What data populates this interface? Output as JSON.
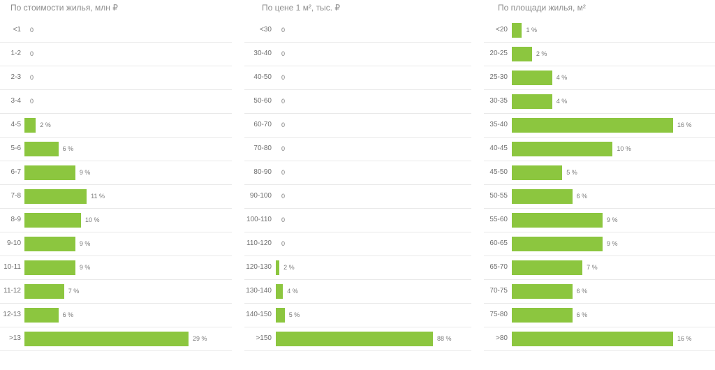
{
  "accent_color": "#8cc63f",
  "chart_data": [
    {
      "type": "bar",
      "orientation": "horizontal",
      "title": "По стоимости жилья, млн ₽",
      "categories": [
        "<1",
        "1-2",
        "2-3",
        "3-4",
        "4-5",
        "5-6",
        "6-7",
        "7-8",
        "8-9",
        "9-10",
        "10-11",
        "11-12",
        "12-13",
        ">13"
      ],
      "values": [
        0,
        0,
        0,
        0,
        2,
        6,
        9,
        11,
        10,
        9,
        9,
        7,
        6,
        29
      ],
      "labels": [
        "0",
        "0",
        "0",
        "0",
        "2 %",
        "6 %",
        "9 %",
        "11 %",
        "10 %",
        "9 %",
        "9 %",
        "7 %",
        "6 %",
        "29 %"
      ],
      "xlim": [
        0,
        29
      ]
    },
    {
      "type": "bar",
      "orientation": "horizontal",
      "title": "По цене 1 м², тыс. ₽",
      "categories": [
        "<30",
        "30-40",
        "40-50",
        "50-60",
        "60-70",
        "70-80",
        "80-90",
        "90-100",
        "100-110",
        "110-120",
        "120-130",
        "130-140",
        "140-150",
        ">150"
      ],
      "values": [
        0,
        0,
        0,
        0,
        0,
        0,
        0,
        0,
        0,
        0,
        2,
        4,
        5,
        88
      ],
      "labels": [
        "0",
        "0",
        "0",
        "0",
        "0",
        "0",
        "0",
        "0",
        "0",
        "0",
        "2 %",
        "4 %",
        "5 %",
        "88 %"
      ],
      "xlim": [
        0,
        88
      ]
    },
    {
      "type": "bar",
      "orientation": "horizontal",
      "title": "По площади жилья, м²",
      "categories": [
        "<20",
        "20-25",
        "25-30",
        "30-35",
        "35-40",
        "40-45",
        "45-50",
        "50-55",
        "55-60",
        "60-65",
        "65-70",
        "70-75",
        "75-80",
        ">80"
      ],
      "values": [
        1,
        2,
        4,
        4,
        16,
        10,
        5,
        6,
        9,
        9,
        7,
        6,
        6,
        16
      ],
      "labels": [
        "1 %",
        "2 %",
        "4 %",
        "4 %",
        "16 %",
        "10 %",
        "5 %",
        "6 %",
        "9 %",
        "9 %",
        "7 %",
        "6 %",
        "6 %",
        "16 %"
      ],
      "xlim": [
        0,
        16
      ]
    }
  ]
}
